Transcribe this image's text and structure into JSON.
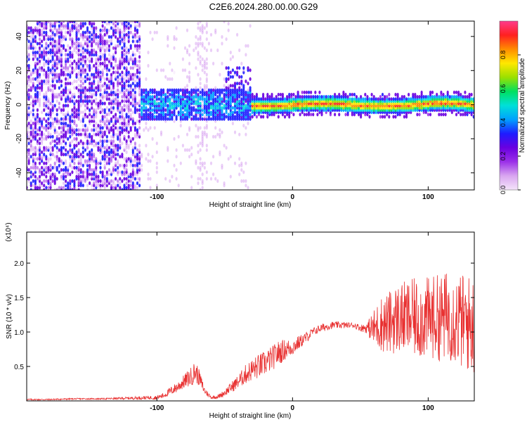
{
  "title": "C2E6.2024.280.00.00.G29",
  "chart_data": [
    {
      "type": "heatmap",
      "xlabel": "Height of straight line (km)",
      "ylabel": "Frequency (Hz)",
      "xlim": [
        -196,
        134
      ],
      "ylim": [
        -50,
        49
      ],
      "xticks": [
        {
          "value": -100,
          "label": "-100"
        },
        {
          "value": 0,
          "label": "0"
        },
        {
          "value": 100,
          "label": "100"
        }
      ],
      "yticks": [
        {
          "value": -40,
          "label": "-40"
        },
        {
          "value": -20,
          "label": "-20"
        },
        {
          "value": 0,
          "label": "0"
        },
        {
          "value": 20,
          "label": "20"
        },
        {
          "value": 40,
          "label": "40"
        }
      ],
      "grid": false,
      "colorbar": {
        "label": "Normalized spectral amplitude",
        "range": [
          0,
          1
        ],
        "ticks": [
          {
            "value": 0.0,
            "label": "0.0"
          },
          {
            "value": 0.2,
            "label": "0.2"
          },
          {
            "value": 0.4,
            "label": "0.4"
          },
          {
            "value": 0.6,
            "label": "0.6"
          },
          {
            "value": 0.8,
            "label": "0.8"
          }
        ],
        "colors": [
          "#f4e4fa",
          "#d9a6f0",
          "#9b30e8",
          "#6a00e0",
          "#1e1cff",
          "#00a0ff",
          "#00e0d8",
          "#00e060",
          "#9be000",
          "#ffe800",
          "#ff8c00",
          "#ff2020",
          "#ff3c8c"
        ]
      },
      "features": [
        {
          "x_range": [
            -196,
            -112
          ],
          "frequency_range": [
            -50,
            49
          ],
          "amplitude": "0.05-0.35 scattered"
        },
        {
          "x_range": [
            -120,
            -30
          ],
          "frequency_range": [
            -8,
            10
          ],
          "amplitude": "0.3-0.55"
        },
        {
          "x_range": [
            -30,
            134
          ],
          "frequency_center": 0,
          "frequency_halfwidth": 4,
          "amplitude": "0.5-1.0"
        }
      ]
    },
    {
      "type": "line",
      "xlabel": "Height of straight line (km)",
      "ylabel": "SNR (10 * v/v)",
      "y_multiplier": "(x10⁴)",
      "xlim": [
        -196,
        134
      ],
      "ylim": [
        0,
        2.45
      ],
      "xticks": [
        {
          "value": -100,
          "label": "-100"
        },
        {
          "value": 0,
          "label": "0"
        },
        {
          "value": 100,
          "label": "100"
        }
      ],
      "yticks": [
        {
          "value": 0.5,
          "label": "0.5"
        },
        {
          "value": 1.0,
          "label": "1.0"
        },
        {
          "value": 1.5,
          "label": "1.5"
        },
        {
          "value": 2.0,
          "label": "2.0"
        }
      ],
      "grid": false,
      "series": [
        {
          "color": "#e83030",
          "x": [
            -196,
            -180,
            -160,
            -140,
            -120,
            -100,
            -95,
            -90,
            -85,
            -80,
            -75,
            -72,
            -70,
            -68,
            -65,
            -60,
            -55,
            -50,
            -45,
            -40,
            -35,
            -30,
            -25,
            -20,
            -15,
            -10,
            -5,
            0,
            5,
            10,
            15,
            20,
            25,
            30,
            35,
            40,
            45,
            50,
            55,
            60,
            65,
            70,
            75,
            80,
            85,
            90,
            95,
            100,
            105,
            110,
            115,
            120,
            125,
            130,
            134
          ],
          "y": [
            0.02,
            0.02,
            0.03,
            0.03,
            0.04,
            0.05,
            0.08,
            0.14,
            0.2,
            0.28,
            0.35,
            0.42,
            0.38,
            0.3,
            0.15,
            0.05,
            0.06,
            0.12,
            0.2,
            0.28,
            0.38,
            0.45,
            0.5,
            0.55,
            0.62,
            0.7,
            0.75,
            0.78,
            0.85,
            0.92,
            1.0,
            1.05,
            1.08,
            1.1,
            1.1,
            1.1,
            1.1,
            1.06,
            1.06,
            1.05,
            1.12,
            1.12,
            1.18,
            1.2,
            1.2,
            1.2,
            1.2,
            1.2,
            1.22,
            1.2,
            1.25,
            1.2,
            1.15,
            1.12,
            1.1
          ],
          "spread": [
            0.01,
            0.01,
            0.01,
            0.01,
            0.02,
            0.03,
            0.04,
            0.06,
            0.08,
            0.1,
            0.14,
            0.16,
            0.14,
            0.1,
            0.06,
            0.02,
            0.03,
            0.05,
            0.08,
            0.1,
            0.14,
            0.16,
            0.18,
            0.18,
            0.18,
            0.18,
            0.15,
            0.12,
            0.1,
            0.08,
            0.06,
            0.06,
            0.06,
            0.05,
            0.05,
            0.04,
            0.04,
            0.05,
            0.08,
            0.28,
            0.4,
            0.45,
            0.5,
            0.52,
            0.55,
            0.58,
            0.6,
            0.6,
            0.62,
            0.64,
            0.66,
            0.68,
            0.7,
            0.72,
            0.72
          ]
        }
      ]
    }
  ]
}
